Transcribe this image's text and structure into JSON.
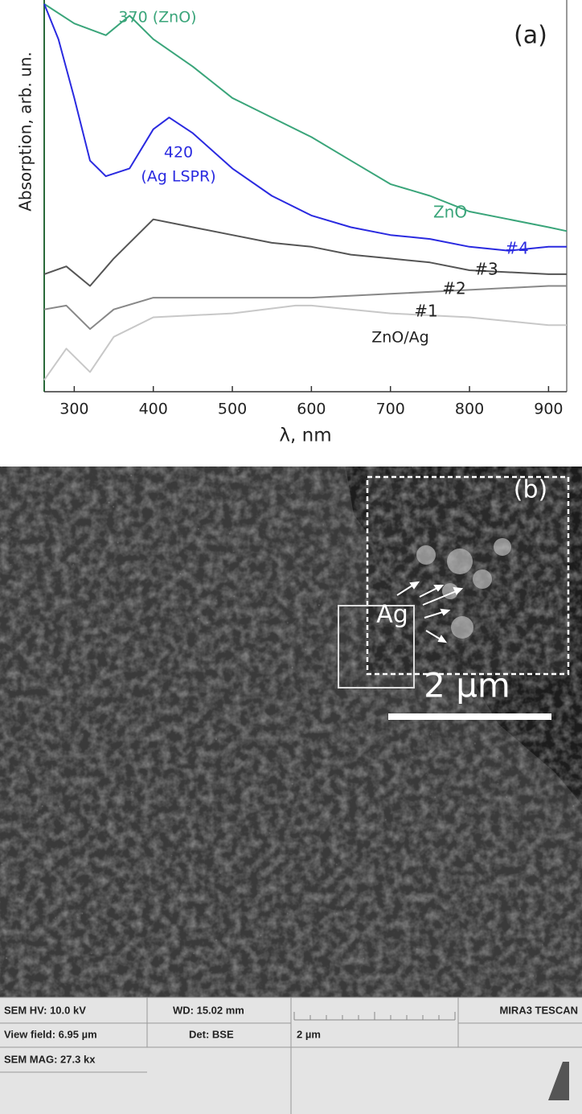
{
  "chart_data": {
    "type": "line",
    "xlabel": "λ, nm",
    "ylabel": "Absorption, arb. un.",
    "panel_label": "(a)",
    "xlim": [
      262,
      923
    ],
    "xticks": [
      300,
      400,
      500,
      600,
      700,
      800,
      900
    ],
    "ylim": [
      0,
      100
    ],
    "grid": false,
    "series": [
      {
        "name": "ZnO",
        "color": "#3aa57a",
        "label_color": "#3aa57a",
        "x": [
          262,
          300,
          340,
          370,
          400,
          450,
          500,
          550,
          600,
          650,
          700,
          750,
          800,
          850,
          900,
          923
        ],
        "values": [
          99,
          94,
          91,
          96,
          90,
          83,
          75,
          70,
          65,
          59,
          53,
          50,
          46,
          44,
          42,
          41
        ]
      },
      {
        "name": "#4",
        "color": "#2a2ae0",
        "label_color": "#2a2ae0",
        "x": [
          262,
          280,
          300,
          320,
          340,
          370,
          400,
          420,
          450,
          500,
          550,
          600,
          650,
          700,
          750,
          800,
          850,
          900,
          923
        ],
        "values": [
          99,
          90,
          75,
          59,
          55,
          57,
          67,
          70,
          66,
          57,
          50,
          45,
          42,
          40,
          39,
          37,
          36,
          37,
          37
        ]
      },
      {
        "name": "#3",
        "color": "#555555",
        "label_color": "#222222",
        "x": [
          262,
          290,
          320,
          350,
          380,
          400,
          450,
          500,
          550,
          600,
          650,
          700,
          750,
          800,
          900,
          923
        ],
        "values": [
          30,
          32,
          27,
          34,
          40,
          44,
          42,
          40,
          38,
          37,
          35,
          34,
          33,
          31,
          30,
          30
        ]
      },
      {
        "name": "#2",
        "color": "#888888",
        "label_color": "#222222",
        "x": [
          262,
          290,
          320,
          350,
          400,
          500,
          600,
          700,
          800,
          900,
          923
        ],
        "values": [
          21,
          22,
          16,
          21,
          24,
          24,
          24,
          25,
          26,
          27,
          27
        ]
      },
      {
        "name": "#1",
        "color": "#c8c8c8",
        "label_color": "#222222",
        "x": [
          262,
          290,
          320,
          350,
          400,
          500,
          580,
          600,
          700,
          800,
          900,
          923
        ],
        "values": [
          3,
          11,
          5,
          14,
          19,
          20,
          22,
          22,
          20,
          19,
          17,
          17
        ]
      }
    ],
    "annotations": [
      {
        "text": "370 (ZnO)",
        "color": "#3aa57a"
      },
      {
        "text": "420",
        "color": "#2a2ae0"
      },
      {
        "text": "(Ag LSPR)",
        "color": "#2a2ae0"
      },
      {
        "text": "ZnO/Ag",
        "color": "#222222"
      }
    ]
  },
  "sem": {
    "panel_label": "(b)",
    "inset_label": "Ag",
    "scale_bar": "2 µm",
    "info": {
      "hv": "SEM HV: 10.0 kV",
      "wd": "WD: 15.02 mm",
      "instrument": "MIRA3 TESCAN",
      "view_field": "View field: 6.95 µm",
      "detector": "Det: BSE",
      "bar_label": "2 µm",
      "mag": "SEM MAG: 27.3 kx"
    }
  }
}
